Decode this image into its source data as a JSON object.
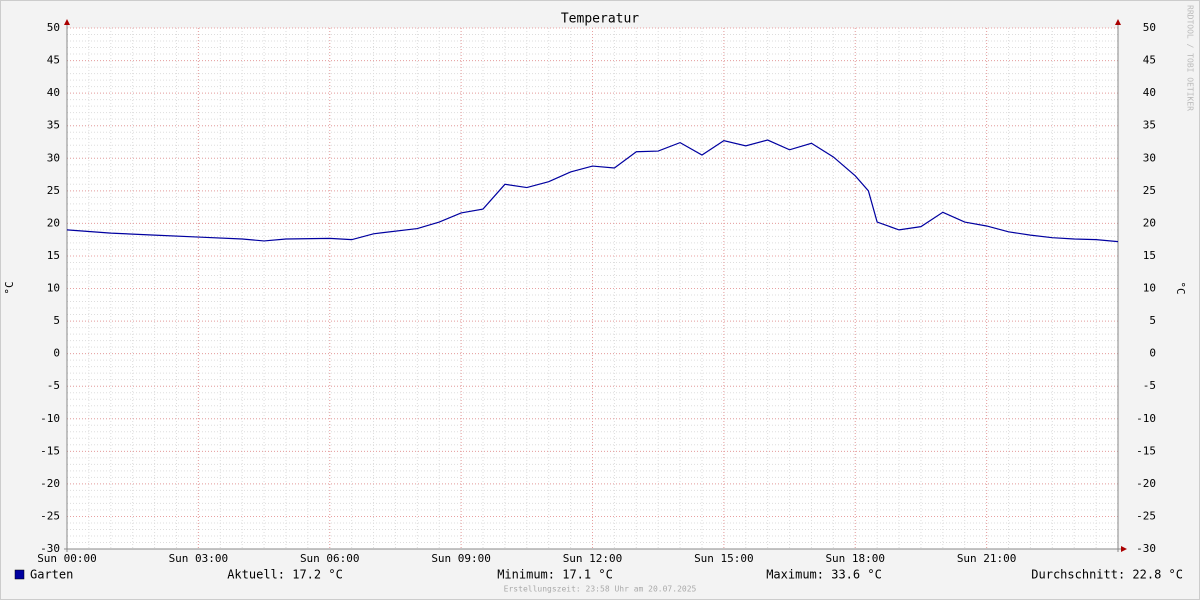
{
  "chart_data": {
    "type": "line",
    "title": "Temperatur",
    "ylabel": "°C",
    "watermark": "RRDTOOL / TOBI OETIKER",
    "x": [
      0,
      1,
      2,
      3,
      4,
      4.5,
      5,
      6,
      6.5,
      7,
      8,
      8.5,
      9,
      9.5,
      10,
      10.5,
      11,
      11.5,
      12,
      12.5,
      13,
      13.5,
      14,
      14.5,
      15,
      15.5,
      16,
      16.5,
      17,
      17.5,
      18,
      18.3,
      18.5,
      19,
      19.5,
      20,
      20.5,
      21,
      21.5,
      22,
      22.5,
      23,
      23.5,
      24
    ],
    "series": [
      {
        "name": "Garten",
        "color": "#0000a0",
        "values": [
          19.0,
          18.5,
          18.2,
          17.9,
          17.6,
          17.3,
          17.6,
          17.7,
          17.5,
          18.4,
          19.2,
          20.2,
          21.6,
          22.2,
          26.0,
          25.5,
          26.4,
          27.9,
          28.8,
          28.5,
          31.0,
          31.1,
          32.4,
          30.5,
          32.7,
          31.9,
          32.8,
          31.3,
          32.3,
          30.2,
          27.3,
          25.0,
          20.2,
          19.0,
          19.5,
          21.7,
          20.2,
          19.6,
          18.7,
          18.2,
          17.8,
          17.6,
          17.5,
          17.2
        ]
      }
    ],
    "xlim": [
      0,
      24
    ],
    "xticks": [
      {
        "value": 0,
        "label": "Sun 00:00"
      },
      {
        "value": 3,
        "label": "Sun 03:00"
      },
      {
        "value": 6,
        "label": "Sun 06:00"
      },
      {
        "value": 9,
        "label": "Sun 09:00"
      },
      {
        "value": 12,
        "label": "Sun 12:00"
      },
      {
        "value": 15,
        "label": "Sun 15:00"
      },
      {
        "value": 18,
        "label": "Sun 18:00"
      },
      {
        "value": 21,
        "label": "Sun 21:00"
      }
    ],
    "ylim": [
      -30,
      50
    ],
    "yticks": [
      50,
      45,
      40,
      35,
      30,
      25,
      20,
      15,
      10,
      5,
      0,
      -5,
      -10,
      -15,
      -20,
      -25,
      -30
    ],
    "grid": true,
    "stats": [
      "Aktuell: 17.2 °C",
      "Minimum: 17.1 °C",
      "Maximum: 33.6 °C",
      "Durchschnitt: 22.8 °C"
    ],
    "footer": "Erstellungszeit: 23:58 Uhr am 20.07.2025"
  }
}
